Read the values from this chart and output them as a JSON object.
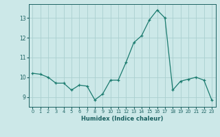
{
  "xlabel": "Humidex (Indice chaleur)",
  "ylabel": "",
  "x": [
    0,
    1,
    2,
    3,
    4,
    5,
    6,
    7,
    8,
    9,
    10,
    11,
    12,
    13,
    14,
    15,
    16,
    17,
    18,
    19,
    20,
    21,
    22,
    23
  ],
  "y": [
    10.2,
    10.15,
    10.0,
    9.7,
    9.7,
    9.35,
    9.6,
    9.55,
    8.85,
    9.15,
    9.85,
    9.85,
    10.75,
    11.75,
    12.1,
    12.9,
    13.4,
    13.0,
    9.35,
    9.8,
    9.9,
    10.0,
    9.85,
    8.85
  ],
  "line_color": "#1a7a6e",
  "bg_color": "#cce8e8",
  "grid_color": "#aad0d0",
  "tick_color": "#1a6060",
  "ylim": [
    8.5,
    13.7
  ],
  "yticks": [
    9,
    10,
    11,
    12,
    13
  ],
  "xticks": [
    0,
    1,
    2,
    3,
    4,
    5,
    6,
    7,
    8,
    9,
    10,
    11,
    12,
    13,
    14,
    15,
    16,
    17,
    18,
    19,
    20,
    21,
    22,
    23
  ]
}
